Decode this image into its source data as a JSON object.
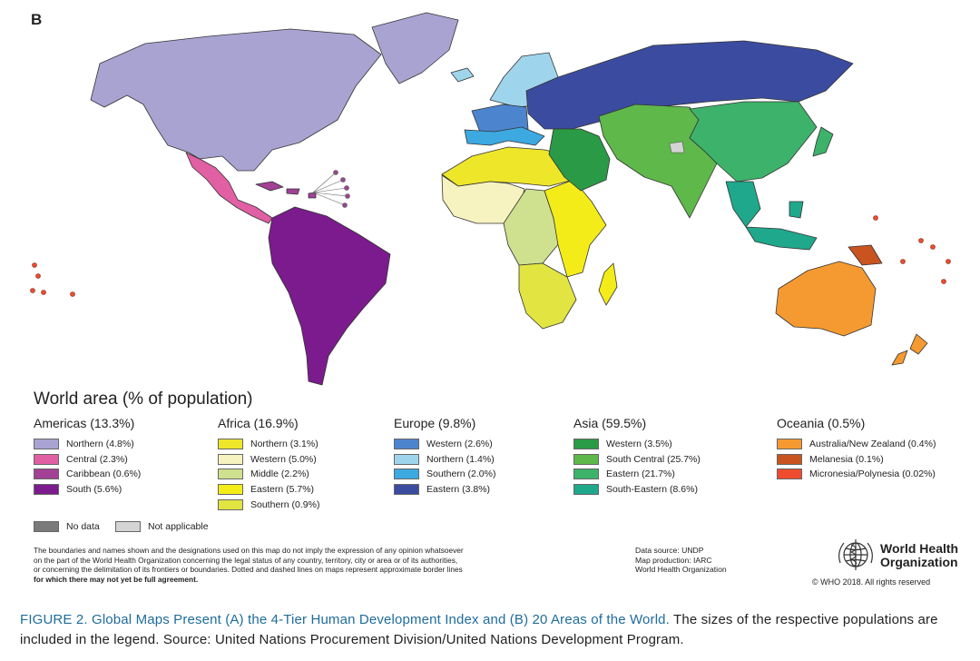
{
  "panel_label": "B",
  "legend": {
    "title": "World area (% of population)",
    "regions": [
      {
        "title": "Americas (13.3%)",
        "items": [
          {
            "label": "Northern (4.8%)",
            "color": "#a9a3d2"
          },
          {
            "label": "Central (2.3%)",
            "color": "#e15fa3"
          },
          {
            "label": "Caribbean (0.6%)",
            "color": "#a24195"
          },
          {
            "label": "South (5.6%)",
            "color": "#7c1b8d"
          }
        ]
      },
      {
        "title": "Africa (16.9%)",
        "items": [
          {
            "label": "Northern (3.1%)",
            "color": "#eee629"
          },
          {
            "label": "Western (5.0%)",
            "color": "#f6f3c1"
          },
          {
            "label": "Middle (2.2%)",
            "color": "#cfe08f"
          },
          {
            "label": "Eastern (5.7%)",
            "color": "#f3ec18"
          },
          {
            "label": "Southern (0.9%)",
            "color": "#e2e441"
          }
        ]
      },
      {
        "title": "Europe (9.8%)",
        "items": [
          {
            "label": "Western (2.6%)",
            "color": "#4d84ce"
          },
          {
            "label": "Northern (1.4%)",
            "color": "#9fd5ec"
          },
          {
            "label": "Southern (2.0%)",
            "color": "#3ca9e1"
          },
          {
            "label": "Eastern (3.8%)",
            "color": "#3b4ca0"
          }
        ]
      },
      {
        "title": "Asia (59.5%)",
        "items": [
          {
            "label": "Western (3.5%)",
            "color": "#2b9a46"
          },
          {
            "label": "South Central (25.7%)",
            "color": "#5fb84a"
          },
          {
            "label": "Eastern (21.7%)",
            "color": "#3cb26a"
          },
          {
            "label": "South-Eastern (8.6%)",
            "color": "#1fa88b"
          }
        ]
      },
      {
        "title": "Oceania (0.5%)",
        "items": [
          {
            "label": "Australia/New Zealand (0.4%)",
            "color": "#f59a31"
          },
          {
            "label": "Melanesia (0.1%)",
            "color": "#c9541f"
          },
          {
            "label": "Micronesia/Polynesia (0.02%)",
            "color": "#ef4b2e"
          }
        ]
      }
    ],
    "no_data": {
      "label": "No data",
      "color": "#7a7a7a"
    },
    "not_applicable": {
      "label": "Not applicable",
      "color": "#d4d4d4"
    }
  },
  "disclaimer": [
    "The boundaries and names shown and the designations used on this map do not imply the expression of any opinion whatsoever",
    "on the part of the World Health Organization concerning the legal status of any country, territory, city or area or of its authorities,",
    "or concerning the delimitation of its frontiers or boundaries. Dotted and dashed lines on maps represent approximate border lines",
    "for which there may not yet be full agreement."
  ],
  "data_source": [
    "Data source: UNDP",
    "Map production: IARC",
    "World Health Organization"
  ],
  "who": {
    "name_line1": "World Health",
    "name_line2": "Organization",
    "copyright": "© WHO 2018. All rights reserved"
  },
  "caption": {
    "figure": "FIGURE 2. Global Maps Present (A) the 4-Tier Human Development Index and (B) 20 Areas of the World.",
    "text": " The sizes of the respective populations are included in the legend. Source: United Nations Procurement Division/United Nations Development Program."
  }
}
